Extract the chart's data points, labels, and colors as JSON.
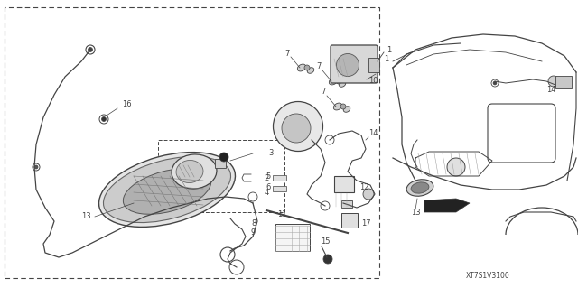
{
  "bg_color": "#ffffff",
  "diagram_code": "XT7S1V3100",
  "lc": "#444444",
  "lc_light": "#888888",
  "fs": 6.0,
  "fs_code": 5.5
}
